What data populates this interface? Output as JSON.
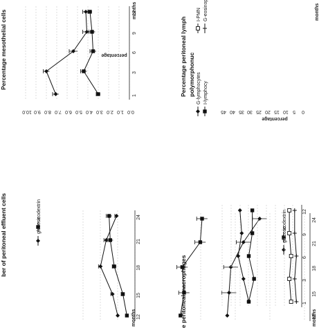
{
  "chart_data": [
    {
      "id": "p1",
      "type": "line",
      "title": "ber of peritoneal effluent cells",
      "xlabel": "months",
      "ylabel": "",
      "x": [
        12,
        15,
        18,
        21,
        24
      ],
      "xtick_labels": [
        "12",
        "15",
        "18",
        "21",
        "24"
      ],
      "xlim": [
        9,
        25
      ],
      "ylim": [
        0,
        10
      ],
      "series": [
        {
          "name": "glucose",
          "marker": "diamond",
          "x": [
            12,
            15,
            18,
            21,
            24
          ],
          "values": [
            3.0,
            3.9,
            6.0,
            5.0,
            3.2
          ],
          "err": [
            0,
            0.3,
            0.35,
            0.4,
            0.3
          ]
        },
        {
          "name": "icodextrin",
          "marker": "square",
          "x": [
            12,
            15,
            18,
            21,
            24
          ],
          "values": [
            1.4,
            2.1,
            3.6,
            4.3,
            4.5
          ],
          "err": [
            0,
            0.3,
            0.35,
            0.5,
            0.5
          ]
        }
      ],
      "legend": "top-right"
    },
    {
      "id": "p2",
      "type": "line",
      "title": "Percentage mesothelial cells",
      "xlabel": "months",
      "ylabel": "percentage",
      "x": [
        1,
        3,
        6,
        9,
        12
      ],
      "xtick_labels": [
        "1",
        "3",
        "6",
        "9",
        "12"
      ],
      "ytick_labels": [
        "10.0",
        "9.0",
        "8.0",
        "7.0",
        "6.0",
        "5.0",
        "4.0",
        "3.0",
        "2.0",
        "1.0",
        "0.0"
      ],
      "ylim": [
        0,
        10
      ],
      "series": [
        {
          "name": "glucose",
          "marker": "diamond",
          "x": [
            1,
            3,
            6,
            9,
            12
          ],
          "values": [
            7.1,
            8.0,
            5.4,
            4.1,
            4.2
          ],
          "err": [
            0.3,
            0.3,
            0.4,
            0.4,
            0.3
          ]
        },
        {
          "name": "icodextrin",
          "marker": "square",
          "x": [
            1,
            3,
            6,
            9,
            12
          ],
          "values": [
            3.0,
            4.4,
            3.5,
            3.6,
            3.8
          ],
          "err": [
            0.2,
            0.3,
            0.3,
            0.3,
            0.2
          ]
        }
      ]
    },
    {
      "id": "p3",
      "type": "line",
      "title": "e peritoneal macrophages",
      "xlabel": "months",
      "ylabel": "",
      "x": [
        12,
        15,
        18,
        21,
        24
      ],
      "xtick_labels": [
        "12",
        "15",
        "18",
        "21",
        "24"
      ],
      "xlim": [
        9,
        25
      ],
      "ylim": [
        0,
        100
      ],
      "series": [
        {
          "name": "glucose",
          "marker": "diamond",
          "x": [
            12,
            15,
            18,
            21,
            24
          ],
          "values": [
            46,
            45,
            44,
            37,
            28
          ],
          "err": [
            0,
            4,
            4,
            4,
            4
          ]
        },
        {
          "name": "icodextrin",
          "marker": "square",
          "x": [
            12,
            15,
            18,
            21,
            24
          ],
          "values": [
            72,
            70,
            71,
            61,
            60
          ],
          "err": [
            0,
            3,
            3,
            3,
            3
          ]
        }
      ],
      "legend": "bottom-right"
    },
    {
      "id": "p4",
      "type": "line",
      "title": "Percentage peritoneal lymph",
      "subtitle": "polymorphonuc",
      "xlabel": "months",
      "ylabel": "percentage",
      "x": [
        1,
        3,
        6,
        9,
        12
      ],
      "xtick_labels": [
        "1",
        "3",
        "6",
        "9",
        "12"
      ],
      "ytick_labels": [
        "45",
        "40",
        "35",
        "30",
        "25",
        "20",
        "15",
        "10",
        "5",
        "0"
      ],
      "ylim": [
        0,
        45
      ],
      "series": [
        {
          "name": "G-lymphocytes",
          "marker": "diamond",
          "x": [
            1,
            3,
            6,
            9,
            12
          ],
          "values": [
            30,
            33,
            36,
            34,
            35
          ]
        },
        {
          "name": "I-lymphocy",
          "marker": "square",
          "x": [
            1,
            3,
            6,
            9,
            12
          ],
          "values": [
            30,
            27,
            30,
            28,
            28
          ]
        },
        {
          "name": "I-PMN",
          "marker": "open-square",
          "x": [
            1,
            3,
            6,
            9,
            12
          ],
          "values": [
            6,
            7,
            6,
            7,
            7
          ]
        },
        {
          "name": "G-eosinophi",
          "marker": "plus",
          "x": [
            1,
            3,
            6,
            9,
            12
          ],
          "values": [
            3,
            4,
            3,
            4,
            4
          ]
        }
      ]
    }
  ]
}
